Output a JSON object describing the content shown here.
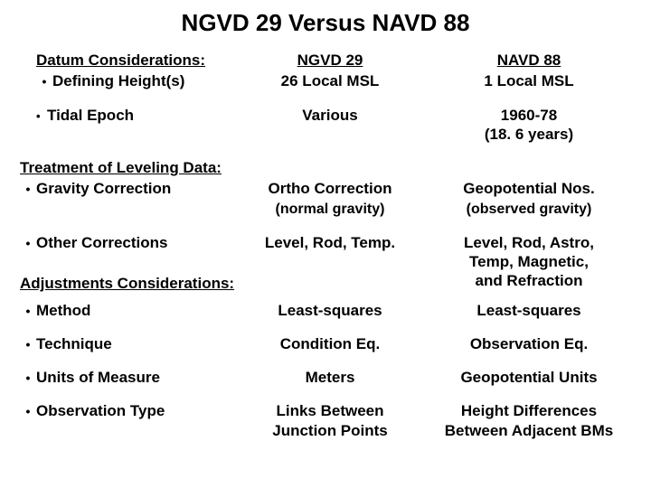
{
  "title": "NGVD 29 Versus NAVD 88",
  "headers": {
    "datum": "Datum Considerations:",
    "col1": "NGVD 29",
    "col2": "NAVD 88"
  },
  "rows": {
    "defining": {
      "label": "Defining Height(s)",
      "v1": "26 Local MSL",
      "v2": "1 Local MSL"
    },
    "tidal": {
      "label": "Tidal Epoch",
      "v1": "Various",
      "v2a": "1960-78",
      "v2b": "(18. 6 years)"
    },
    "treat": {
      "label": "Treatment of Leveling Data:"
    },
    "gravity": {
      "label": "Gravity Correction",
      "v1": "Ortho Correction",
      "v1s": "(normal gravity)",
      "v2": "Geopotential Nos.",
      "v2s": "(observed gravity)"
    },
    "other": {
      "label": "Other Corrections",
      "v1": "Level, Rod, Temp.",
      "v2a": "Level, Rod, Astro,",
      "v2b": "Temp, Magnetic,",
      "v2c": "and Refraction"
    },
    "adjust": {
      "label": "Adjustments Considerations:"
    },
    "method": {
      "label": "Method",
      "v1": "Least-squares",
      "v2": "Least-squares"
    },
    "tech": {
      "label": "Technique",
      "v1": "Condition Eq.",
      "v2": "Observation Eq."
    },
    "units": {
      "label": "Units of Measure",
      "v1": "Meters",
      "v2": "Geopotential Units"
    },
    "obs": {
      "label": "Observation Type",
      "v1a": "Links Between",
      "v1b": "Junction Points",
      "v2a": "Height Differences",
      "v2b": "Between Adjacent BMs"
    }
  }
}
